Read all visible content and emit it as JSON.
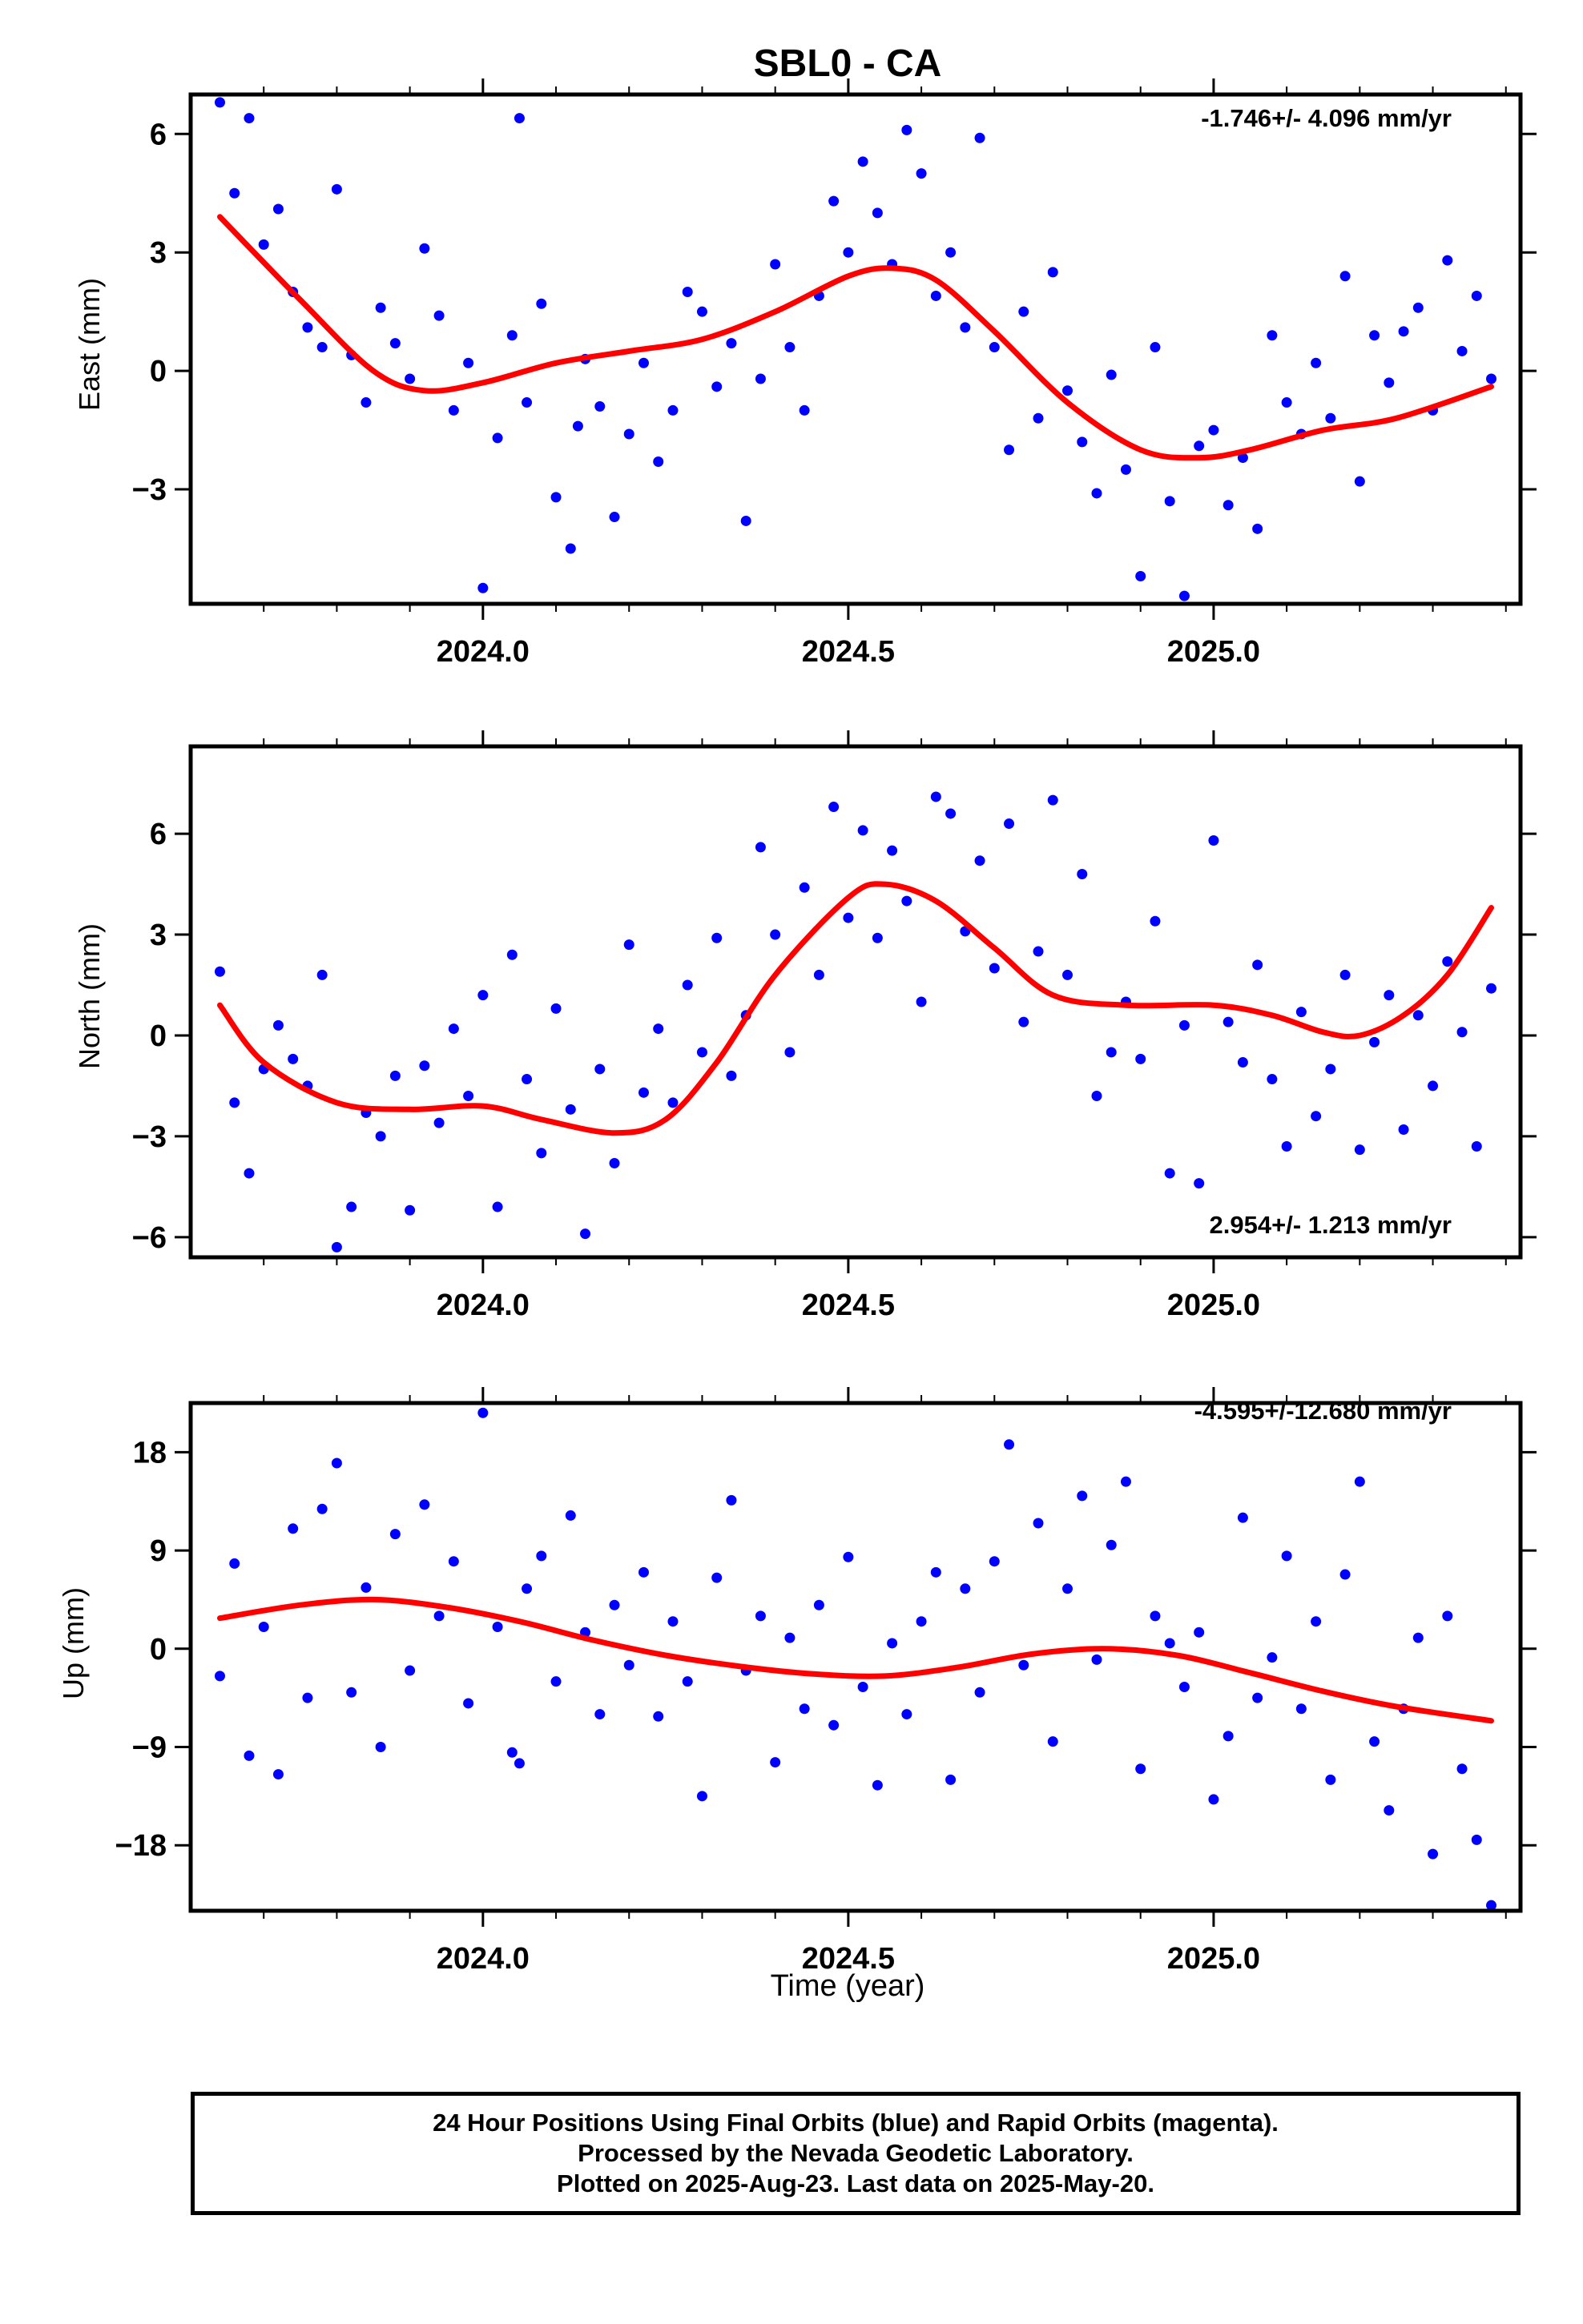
{
  "title": "SBL0 - CA",
  "x_axis_label": "Time (year)",
  "x_ticks": [
    "2024.0",
    "2024.5",
    "2025.0"
  ],
  "caption": {
    "line1": "24 Hour Positions Using Final Orbits (blue) and Rapid Orbits (magenta).",
    "line2": "Processed by the Nevada Geodetic Laboratory.",
    "line3": "Plotted on 2025-Aug-23. Last data on 2025-May-20."
  },
  "colors": {
    "points": "#0000ff",
    "trend": "#ff0000",
    "frame": "#000000"
  },
  "chart_data": [
    {
      "type": "scatter",
      "component": "East",
      "ylabel": "East (mm)",
      "rate_label": "-1.746+/- 4.096 mm/yr",
      "rate_position": "top-right",
      "xlim": [
        2023.6,
        2025.42
      ],
      "ylim": [
        -5.9,
        7.0
      ],
      "yticks": [
        -3,
        0,
        3,
        6
      ],
      "trend": {
        "x": [
          2023.64,
          2023.75,
          2023.85,
          2023.92,
          2024.0,
          2024.1,
          2024.2,
          2024.3,
          2024.4,
          2024.5,
          2024.56,
          2024.62,
          2024.7,
          2024.8,
          2024.9,
          2024.98,
          2025.05,
          2025.15,
          2025.25,
          2025.38
        ],
        "y": [
          3.9,
          1.8,
          0.0,
          -0.5,
          -0.3,
          0.2,
          0.5,
          0.8,
          1.5,
          2.4,
          2.6,
          2.3,
          1.0,
          -0.8,
          -2.0,
          -2.2,
          -2.0,
          -1.5,
          -1.2,
          -0.4
        ]
      },
      "points": {
        "x": [
          2023.64,
          2023.66,
          2023.68,
          2023.7,
          2023.72,
          2023.74,
          2023.76,
          2023.78,
          2023.8,
          2023.82,
          2023.84,
          2023.86,
          2023.88,
          2023.9,
          2023.92,
          2023.94,
          2023.96,
          2023.98,
          2024.0,
          2024.02,
          2024.04,
          2024.05,
          2024.06,
          2024.08,
          2024.1,
          2024.12,
          2024.13,
          2024.14,
          2024.16,
          2024.18,
          2024.2,
          2024.22,
          2024.24,
          2024.26,
          2024.28,
          2024.3,
          2024.32,
          2024.34,
          2024.36,
          2024.38,
          2024.4,
          2024.42,
          2024.44,
          2024.46,
          2024.48,
          2024.5,
          2024.52,
          2024.54,
          2024.56,
          2024.58,
          2024.6,
          2024.62,
          2024.64,
          2024.66,
          2024.68,
          2024.7,
          2024.72,
          2024.74,
          2024.76,
          2024.78,
          2024.8,
          2024.82,
          2024.84,
          2024.86,
          2024.88,
          2024.9,
          2024.92,
          2024.94,
          2024.96,
          2024.98,
          2025.0,
          2025.02,
          2025.04,
          2025.06,
          2025.08,
          2025.1,
          2025.12,
          2025.14,
          2025.16,
          2025.18,
          2025.2,
          2025.22,
          2025.24,
          2025.26,
          2025.28,
          2025.3,
          2025.32,
          2025.34,
          2025.36,
          2025.38
        ],
        "y": [
          6.8,
          4.5,
          6.4,
          3.2,
          4.1,
          2.0,
          1.1,
          0.6,
          4.6,
          0.4,
          -0.8,
          1.6,
          0.7,
          -0.2,
          3.1,
          1.4,
          -1.0,
          0.2,
          -5.5,
          -1.7,
          0.9,
          6.4,
          -0.8,
          1.7,
          -3.2,
          -4.5,
          -1.4,
          0.3,
          -0.9,
          -3.7,
          -1.6,
          0.2,
          -2.3,
          -1.0,
          2.0,
          1.5,
          -0.4,
          0.7,
          -3.8,
          -0.2,
          2.7,
          0.6,
          -1.0,
          1.9,
          4.3,
          3.0,
          5.3,
          4.0,
          2.7,
          6.1,
          5.0,
          1.9,
          3.0,
          1.1,
          5.9,
          0.6,
          -2.0,
          1.5,
          -1.2,
          2.5,
          -0.5,
          -1.8,
          -3.1,
          -0.1,
          -2.5,
          -5.2,
          0.6,
          -3.3,
          -5.7,
          -1.9,
          -1.5,
          -3.4,
          -2.2,
          -4.0,
          0.9,
          -0.8,
          -1.6,
          0.2,
          -1.2,
          2.4,
          -2.8,
          0.9,
          -0.3,
          1.0,
          1.6,
          -1.0,
          2.8,
          0.5,
          1.9,
          -0.2
        ]
      }
    },
    {
      "type": "scatter",
      "component": "North",
      "ylabel": "North (mm)",
      "rate_label": "2.954+/- 1.213 mm/yr",
      "rate_position": "bottom-right",
      "xlim": [
        2023.6,
        2025.42
      ],
      "ylim": [
        -6.6,
        8.6
      ],
      "yticks": [
        -6,
        -3,
        0,
        3,
        6
      ],
      "trend": {
        "x": [
          2023.64,
          2023.7,
          2023.8,
          2023.9,
          2024.0,
          2024.08,
          2024.18,
          2024.25,
          2024.32,
          2024.4,
          2024.5,
          2024.55,
          2024.62,
          2024.7,
          2024.78,
          2024.88,
          2025.0,
          2025.08,
          2025.15,
          2025.2,
          2025.26,
          2025.32,
          2025.38
        ],
        "y": [
          0.9,
          -0.8,
          -2.0,
          -2.2,
          -2.1,
          -2.5,
          -2.9,
          -2.5,
          -0.8,
          1.8,
          4.1,
          4.5,
          4.0,
          2.6,
          1.2,
          0.9,
          0.9,
          0.6,
          0.1,
          0.0,
          0.6,
          1.8,
          3.8
        ]
      },
      "points": {
        "x": [
          2023.64,
          2023.66,
          2023.68,
          2023.7,
          2023.72,
          2023.74,
          2023.76,
          2023.78,
          2023.8,
          2023.82,
          2023.84,
          2023.86,
          2023.88,
          2023.9,
          2023.92,
          2023.94,
          2023.96,
          2023.98,
          2024.0,
          2024.02,
          2024.04,
          2024.06,
          2024.08,
          2024.1,
          2024.12,
          2024.14,
          2024.16,
          2024.18,
          2024.2,
          2024.22,
          2024.24,
          2024.26,
          2024.28,
          2024.3,
          2024.32,
          2024.34,
          2024.36,
          2024.38,
          2024.4,
          2024.42,
          2024.44,
          2024.46,
          2024.48,
          2024.5,
          2024.52,
          2024.54,
          2024.56,
          2024.58,
          2024.6,
          2024.62,
          2024.64,
          2024.66,
          2024.68,
          2024.7,
          2024.72,
          2024.74,
          2024.76,
          2024.78,
          2024.8,
          2024.82,
          2024.84,
          2024.86,
          2024.88,
          2024.9,
          2024.92,
          2024.94,
          2024.96,
          2024.98,
          2025.0,
          2025.02,
          2025.04,
          2025.06,
          2025.08,
          2025.1,
          2025.12,
          2025.14,
          2025.16,
          2025.18,
          2025.2,
          2025.22,
          2025.24,
          2025.26,
          2025.28,
          2025.3,
          2025.32,
          2025.34,
          2025.36,
          2025.38
        ],
        "y": [
          1.9,
          -2.0,
          -4.1,
          -1.0,
          0.3,
          -0.7,
          -1.5,
          1.8,
          -6.3,
          -5.1,
          -2.3,
          -3.0,
          -1.2,
          -5.2,
          -0.9,
          -2.6,
          0.2,
          -1.8,
          1.2,
          -5.1,
          2.4,
          -1.3,
          -3.5,
          0.8,
          -2.2,
          -5.9,
          -1.0,
          -3.8,
          2.7,
          -1.7,
          0.2,
          -2.0,
          1.5,
          -0.5,
          2.9,
          -1.2,
          0.6,
          5.6,
          3.0,
          -0.5,
          4.4,
          1.8,
          6.8,
          3.5,
          6.1,
          2.9,
          5.5,
          4.0,
          1.0,
          7.1,
          6.6,
          3.1,
          5.2,
          2.0,
          6.3,
          0.4,
          2.5,
          7.0,
          1.8,
          4.8,
          -1.8,
          -0.5,
          1.0,
          -0.7,
          3.4,
          -4.1,
          0.3,
          -4.4,
          5.8,
          0.4,
          -0.8,
          2.1,
          -1.3,
          -3.3,
          0.7,
          -2.4,
          -1.0,
          1.8,
          -3.4,
          -0.2,
          1.2,
          -2.8,
          0.6,
          -1.5,
          2.2,
          0.1,
          -3.3,
          1.4
        ]
      }
    },
    {
      "type": "scatter",
      "component": "Up",
      "ylabel": "Up (mm)",
      "rate_label": "-4.595+/-12.680 mm/yr",
      "rate_position": "top-right",
      "xlim": [
        2023.6,
        2025.42
      ],
      "ylim": [
        -24.0,
        22.5
      ],
      "yticks": [
        -18,
        -9,
        0,
        9,
        18
      ],
      "trend": {
        "x": [
          2023.64,
          2023.75,
          2023.85,
          2023.95,
          2024.05,
          2024.15,
          2024.25,
          2024.35,
          2024.45,
          2024.55,
          2024.65,
          2024.75,
          2024.85,
          2024.95,
          2025.05,
          2025.15,
          2025.25,
          2025.38
        ],
        "y": [
          2.8,
          4.0,
          4.5,
          3.8,
          2.5,
          0.8,
          -0.6,
          -1.6,
          -2.3,
          -2.5,
          -1.7,
          -0.5,
          0.0,
          -0.6,
          -2.2,
          -3.9,
          -5.3,
          -6.6
        ]
      },
      "points": {
        "x": [
          2023.64,
          2023.66,
          2023.68,
          2023.7,
          2023.72,
          2023.74,
          2023.76,
          2023.78,
          2023.8,
          2023.82,
          2023.84,
          2023.86,
          2023.88,
          2023.9,
          2023.92,
          2023.94,
          2023.96,
          2023.98,
          2024.0,
          2024.02,
          2024.04,
          2024.05,
          2024.06,
          2024.08,
          2024.1,
          2024.12,
          2024.14,
          2024.16,
          2024.18,
          2024.2,
          2024.22,
          2024.24,
          2024.26,
          2024.28,
          2024.3,
          2024.32,
          2024.34,
          2024.36,
          2024.38,
          2024.4,
          2024.42,
          2024.44,
          2024.46,
          2024.48,
          2024.5,
          2024.52,
          2024.54,
          2024.56,
          2024.58,
          2024.6,
          2024.62,
          2024.64,
          2024.66,
          2024.68,
          2024.7,
          2024.72,
          2024.74,
          2024.76,
          2024.78,
          2024.8,
          2024.82,
          2024.84,
          2024.86,
          2024.88,
          2024.9,
          2024.92,
          2024.94,
          2024.96,
          2024.98,
          2025.0,
          2025.02,
          2025.04,
          2025.06,
          2025.08,
          2025.1,
          2025.12,
          2025.14,
          2025.16,
          2025.18,
          2025.2,
          2025.22,
          2025.24,
          2025.26,
          2025.28,
          2025.3,
          2025.32,
          2025.34,
          2025.36,
          2025.38
        ],
        "y": [
          -2.5,
          7.8,
          -9.8,
          2.0,
          -11.5,
          11.0,
          -4.5,
          12.8,
          17.0,
          -4.0,
          5.6,
          -9.0,
          10.5,
          -2.0,
          13.2,
          3.0,
          8.0,
          -5.0,
          21.6,
          2.0,
          -9.5,
          -10.5,
          5.5,
          8.5,
          -3.0,
          12.2,
          1.5,
          -6.0,
          4.0,
          -1.5,
          7.0,
          -6.2,
          2.5,
          -3.0,
          -13.5,
          6.5,
          13.6,
          -2.0,
          3.0,
          -10.4,
          1.0,
          -5.5,
          4.0,
          -7.0,
          8.4,
          -3.5,
          -12.5,
          0.5,
          -6.0,
          2.5,
          7.0,
          -12.0,
          5.5,
          -4.0,
          8.0,
          18.7,
          -1.5,
          11.5,
          -8.5,
          5.5,
          14.0,
          -1.0,
          9.5,
          15.3,
          -11.0,
          3.0,
          0.5,
          -3.5,
          1.5,
          -13.8,
          -8.0,
          12.0,
          -4.5,
          -0.8,
          8.5,
          -5.5,
          2.5,
          -12.0,
          6.8,
          15.3,
          -8.5,
          -14.8,
          -5.5,
          1.0,
          -18.8,
          3.0,
          -11.0,
          -17.5,
          -23.5
        ]
      }
    }
  ]
}
